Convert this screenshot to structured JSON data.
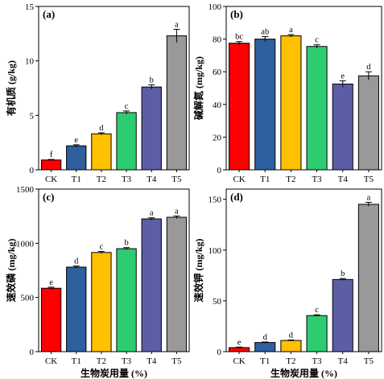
{
  "colors": {
    "bars": [
      "#ff0000",
      "#2e5f9e",
      "#ffc000",
      "#2ecc71",
      "#5b5ea6",
      "#999999"
    ],
    "axis": "#000000",
    "error_bar": "#000000"
  },
  "chart_data": [
    {
      "id": "a",
      "type": "bar",
      "panel_label": "(a)",
      "ylabel": "有机质 (g/kg)",
      "xlabel": "",
      "categories": [
        "CK",
        "T1",
        "T2",
        "T3",
        "T4",
        "T5"
      ],
      "values": [
        0.9,
        2.2,
        3.3,
        5.25,
        7.6,
        12.3
      ],
      "errors": [
        0.05,
        0.1,
        0.1,
        0.15,
        0.2,
        0.6
      ],
      "letters": [
        "f",
        "e",
        "d",
        "c",
        "b",
        "a"
      ],
      "ylim": [
        0,
        15
      ],
      "yticks": [
        0,
        5,
        10,
        15
      ],
      "grid": false
    },
    {
      "id": "b",
      "type": "bar",
      "panel_label": "(b)",
      "ylabel": "碱解氮 (mg/kg)",
      "xlabel": "",
      "categories": [
        "CK",
        "T1",
        "T2",
        "T3",
        "T4",
        "T5"
      ],
      "values": [
        77.5,
        80,
        82,
        75.5,
        52.5,
        57.5
      ],
      "errors": [
        1.0,
        1.5,
        0.8,
        1.0,
        2.0,
        2.5
      ],
      "letters": [
        "bc",
        "ab",
        "a",
        "c",
        "e",
        "d"
      ],
      "ylim": [
        0,
        100
      ],
      "yticks": [
        0,
        20,
        40,
        60,
        80,
        100
      ],
      "grid": false
    },
    {
      "id": "c",
      "type": "bar",
      "panel_label": "(c)",
      "ylabel": "速效磷 (mg/kg)",
      "xlabel": "生物炭用量 (%)",
      "categories": [
        "CK",
        "T1",
        "T2",
        "T3",
        "T4",
        "T5"
      ],
      "values": [
        585,
        780,
        915,
        950,
        1225,
        1240
      ],
      "errors": [
        10,
        10,
        10,
        10,
        10,
        12
      ],
      "letters": [
        "e",
        "d",
        "c",
        "b",
        "a",
        "a"
      ],
      "ylim": [
        0,
        1500
      ],
      "yticks": [
        0,
        500,
        1000,
        1500
      ],
      "grid": false
    },
    {
      "id": "d",
      "type": "bar",
      "panel_label": "(d)",
      "ylabel": "速效钾 (mg/kg)",
      "xlabel": "生物炭用量 (%)",
      "categories": [
        "CK",
        "T1",
        "T2",
        "T3",
        "T4",
        "T5"
      ],
      "values": [
        4,
        9,
        11,
        35.5,
        71,
        145
      ],
      "errors": [
        0.5,
        0.5,
        0.5,
        0.8,
        1.0,
        2.0
      ],
      "letters": [
        "e",
        "d",
        "d",
        "c",
        "b",
        "a"
      ],
      "ylim": [
        0,
        160
      ],
      "yticks": [
        0,
        50,
        100,
        150
      ],
      "grid": false
    }
  ]
}
